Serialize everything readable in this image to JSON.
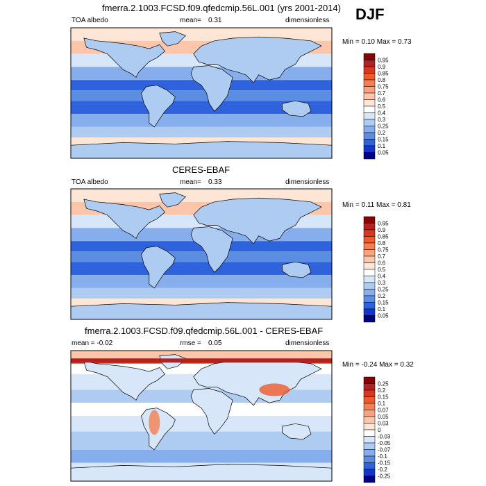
{
  "season": "DJF",
  "panels": [
    {
      "title": "fmerra.2.1003.FCSD.f09.qfedcmip.56L.001 (yrs 2001-2014)",
      "left_label": "TOA albedo",
      "mid_label": "mean=",
      "mid_value": "0.31",
      "right_label": "dimensionless",
      "minmax": "Min =  0.10 Max =  0.73",
      "kind": "model"
    },
    {
      "title": "CERES-EBAF",
      "left_label": "TOA albedo",
      "mid_label": "mean=",
      "mid_value": "0.33",
      "right_label": "dimensionless",
      "minmax": "Min =  0.11 Max =  0.81",
      "kind": "obs"
    },
    {
      "title": "fmerra.2.1003.FCSD.f09.qfedcmip.56L.001 - CERES-EBAF",
      "left_label": "mean =  -0.02",
      "mid_label": "rmse =",
      "mid_value": "0.05",
      "right_label": "dimensionless",
      "minmax": "Min =  -0.24 Max =  0.32",
      "kind": "diff"
    }
  ],
  "colorbars": {
    "abs_levels": [
      "0.95",
      "0.9",
      "0.85",
      "0.8",
      "0.75",
      "0.7",
      "0.6",
      "0.5",
      "0.4",
      "0.3",
      "0.25",
      "0.2",
      "0.15",
      "0.1",
      "0.05"
    ],
    "abs_colors": [
      "#8b0000",
      "#b22222",
      "#d9381e",
      "#f05a2b",
      "#f57f51",
      "#f9a27e",
      "#fcc6aa",
      "#fde6d6",
      "#ffffff",
      "#d7e6f8",
      "#aecbf1",
      "#86aeec",
      "#5b8ee3",
      "#2f62dd",
      "#1136d0",
      "#000080"
    ],
    "diff_levels": [
      "0.25",
      "0.2",
      "0.15",
      "0.1",
      "0.07",
      "0.05",
      "0.03",
      "0",
      "-0.03",
      "-0.05",
      "-0.07",
      "-0.1",
      "-0.15",
      "-0.2",
      "-0.25"
    ],
    "diff_colors": [
      "#8b0000",
      "#b22222",
      "#d9381e",
      "#f05a2b",
      "#f57f51",
      "#f9a27e",
      "#fcc6aa",
      "#fde6d6",
      "#ffffff",
      "#d7e6f8",
      "#aecbf1",
      "#86aeec",
      "#5b8ee3",
      "#2f62dd",
      "#1136d0",
      "#000080"
    ]
  },
  "chart_data": [
    {
      "type": "heatmap",
      "title": "fmerra.2.1003.FCSD.f09.qfedcmip.56L.001 (yrs 2001-2014)",
      "field": "TOA albedo",
      "units": "dimensionless",
      "mean": 0.31,
      "min": 0.1,
      "max": 0.73,
      "season": "DJF",
      "colorbar_levels": [
        0.05,
        0.1,
        0.15,
        0.2,
        0.25,
        0.3,
        0.4,
        0.5,
        0.6,
        0.7,
        0.75,
        0.8,
        0.85,
        0.9,
        0.95
      ]
    },
    {
      "type": "heatmap",
      "title": "CERES-EBAF",
      "field": "TOA albedo",
      "units": "dimensionless",
      "mean": 0.33,
      "min": 0.11,
      "max": 0.81,
      "season": "DJF",
      "colorbar_levels": [
        0.05,
        0.1,
        0.15,
        0.2,
        0.25,
        0.3,
        0.4,
        0.5,
        0.6,
        0.7,
        0.75,
        0.8,
        0.85,
        0.9,
        0.95
      ]
    },
    {
      "type": "heatmap",
      "title": "fmerra.2.1003.FCSD.f09.qfedcmip.56L.001 - CERES-EBAF",
      "units": "dimensionless",
      "mean": -0.02,
      "rmse": 0.05,
      "min": -0.24,
      "max": 0.32,
      "season": "DJF",
      "colorbar_levels": [
        -0.25,
        -0.2,
        -0.15,
        -0.1,
        -0.07,
        -0.05,
        -0.03,
        0,
        0.03,
        0.05,
        0.07,
        0.1,
        0.15,
        0.2,
        0.25
      ]
    }
  ]
}
